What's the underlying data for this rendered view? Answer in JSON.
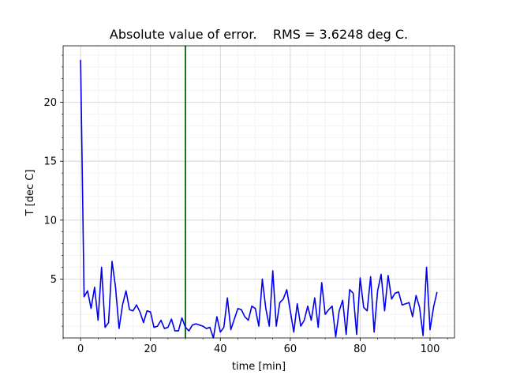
{
  "chart_data": {
    "type": "line",
    "title": "Absolute value of error.    RMS = 3.6248 deg C.",
    "xlabel": "time [min]",
    "ylabel": "T [dec C]",
    "xlim": [
      -5,
      107
    ],
    "ylim": [
      0,
      24.8
    ],
    "xticks": [
      0,
      20,
      40,
      60,
      80,
      100
    ],
    "yticks": [
      5,
      10,
      15,
      20
    ],
    "grid": true,
    "minor_grid": true,
    "series": [
      {
        "color": "#0000ee",
        "x": [
          0,
          1,
          2,
          3,
          4,
          5,
          6,
          7,
          8,
          9,
          10,
          11,
          12,
          13,
          14,
          15,
          16,
          17,
          18,
          19,
          20,
          21,
          22,
          23,
          24,
          25,
          26,
          27,
          28,
          29,
          30,
          31,
          32,
          33,
          34,
          35,
          36,
          37,
          38,
          39,
          40,
          41,
          42,
          43,
          44,
          45,
          46,
          47,
          48,
          49,
          50,
          51,
          52,
          53,
          54,
          55,
          56,
          57,
          58,
          59,
          60,
          61,
          62,
          63,
          64,
          65,
          66,
          67,
          68,
          69,
          70,
          71,
          72,
          73,
          74,
          75,
          76,
          77,
          78,
          79,
          80,
          81,
          82,
          83,
          84,
          85,
          86,
          87,
          88,
          89,
          90,
          91,
          92,
          93,
          94,
          95,
          96,
          97,
          98,
          99,
          100,
          101,
          102
        ],
        "values": [
          23.6,
          3.5,
          4.0,
          2.5,
          4.3,
          1.5,
          6.0,
          0.9,
          1.3,
          6.5,
          4.3,
          0.8,
          2.8,
          4.0,
          2.4,
          2.3,
          2.8,
          2.2,
          1.3,
          2.3,
          2.2,
          0.9,
          1.0,
          1.5,
          0.8,
          0.9,
          1.6,
          0.6,
          0.6,
          1.7,
          0.9,
          0.6,
          1.1,
          1.2,
          1.1,
          1.0,
          0.8,
          0.9,
          0.0,
          1.8,
          0.5,
          0.9,
          3.4,
          0.7,
          1.6,
          2.5,
          2.4,
          1.8,
          1.5,
          2.7,
          2.5,
          1.0,
          5.0,
          2.5,
          1.0,
          5.7,
          1.0,
          3.0,
          3.3,
          4.1,
          2.3,
          0.5,
          2.9,
          1.0,
          1.5,
          2.7,
          1.5,
          3.4,
          0.9,
          4.7,
          2.0,
          2.4,
          2.7,
          0.1,
          2.3,
          3.2,
          0.3,
          4.1,
          3.8,
          0.3,
          5.1,
          2.6,
          2.3,
          5.2,
          0.5,
          4.0,
          5.4,
          2.3,
          5.3,
          3.3,
          3.8,
          3.9,
          2.8,
          2.9,
          3.0,
          1.8,
          3.6,
          2.6,
          0.2,
          6.0,
          0.7,
          2.6,
          3.9
        ]
      }
    ],
    "vlines": [
      {
        "x": 30,
        "color": "#006400"
      }
    ]
  }
}
